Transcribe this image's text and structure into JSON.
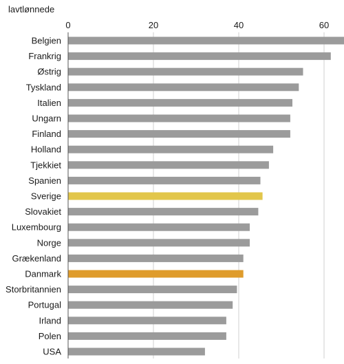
{
  "chart_data": {
    "type": "bar",
    "orientation": "horizontal",
    "unit_label": "lavtlønnede",
    "xlim": [
      0,
      65
    ],
    "xticks": [
      0,
      20,
      40,
      60
    ],
    "grid": "vertical gridlines at ticks",
    "categories": [
      "Belgien",
      "Frankrig",
      "Østrig",
      "Tyskland",
      "Italien",
      "Ungarn",
      "Finland",
      "Holland",
      "Tjekkiet",
      "Spanien",
      "Sverige",
      "Slovakiet",
      "Luxembourg",
      "Norge",
      "Grækenland",
      "Danmark",
      "Storbritannien",
      "Portugal",
      "Irland",
      "Polen",
      "USA"
    ],
    "values": [
      65,
      61.5,
      55,
      54,
      52.5,
      52,
      52,
      48,
      47,
      45,
      45.5,
      44.5,
      42.5,
      42.5,
      41,
      41,
      39.5,
      38.5,
      37,
      37,
      32
    ],
    "colors": {
      "default": "#9b9b9b",
      "Sverige": "#e2c64b",
      "Danmark": "#df9c2c"
    }
  }
}
